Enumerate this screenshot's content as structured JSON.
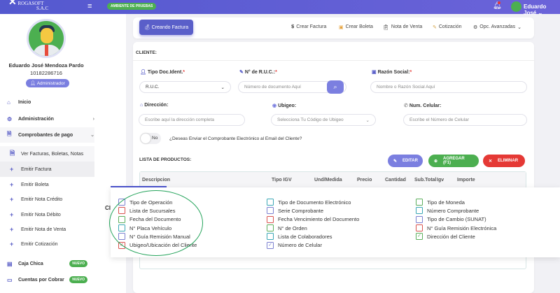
{
  "header": {
    "logo": "ROGASOFT",
    "logo_sub": "S.A.C",
    "env_badge": "AMBIENTE DE PRUEBAS",
    "user": "Eduardo José"
  },
  "profile": {
    "name": "Eduardo José Mendoza Pardo",
    "id": "10182286716",
    "role": "Administrador"
  },
  "sidebar": {
    "items": [
      {
        "label": "Inicio",
        "icon": "home-icon"
      },
      {
        "label": "Administración",
        "icon": "gear-icon"
      },
      {
        "label": "Comprobantes de pago",
        "icon": "document-icon"
      },
      {
        "label": "Ver Facturas, Boletas, Notas",
        "icon": "document-icon"
      },
      {
        "label": "Emitir Factura",
        "icon": "plus-icon"
      },
      {
        "label": "Emitir Boleta",
        "icon": "plus-icon"
      },
      {
        "label": "Emitir Nota Crédito",
        "icon": "plus-icon"
      },
      {
        "label": "Emitir Nota Débito",
        "icon": "plus-icon"
      },
      {
        "label": "Emitir Nota de Venta",
        "icon": "plus-icon"
      },
      {
        "label": "Emitir Cotización",
        "icon": "plus-icon"
      },
      {
        "label": "Caja Chica",
        "icon": "calculator-icon",
        "badge": "NUEVO"
      },
      {
        "label": "Cuentas por Cobrar",
        "icon": "card-icon",
        "badge": "NUEVO"
      }
    ]
  },
  "toolbar": {
    "active": "Creando Factura",
    "links": [
      "Crear Factura",
      "Crear Boleta",
      "Nota de Venta",
      "Cotización",
      "Opc. Avanzadas"
    ]
  },
  "client": {
    "title": "CLIENTE:",
    "tipo_doc_label": "Tipo Doc.Ident.",
    "tipo_doc_value": "R.U.C.",
    "ruc_label": "N° de R.U.C.:",
    "ruc_placeholder": "Número de documento Aquí",
    "razon_label": "Razón Social:",
    "razon_placeholder": "Nombre o Razón Social Aquí",
    "dir_label": "Dirección:",
    "dir_placeholder": "Escribe aquí la dirección completa",
    "ubigeo_label": "Ubigeo:",
    "ubigeo_placeholder": "Selecciona Tu Código de Ubigeo",
    "cel_label": "Num. Celular:",
    "cel_placeholder": "Escribe el Número de Celular",
    "email_toggle": "No",
    "email_question": "¿Deseas Enviar el Comprobante Electrónico al Email del Cliente?",
    "obscured": "Cl"
  },
  "products": {
    "title": "LISTA DE PRODUCTOS:",
    "edit": "EDITAR",
    "add": "AGREGAR (F1)",
    "delete": "ELIMINAR",
    "columns": [
      "Descripcion",
      "Tipo IGV",
      "Und/Medida",
      "Precio",
      "Cantidad",
      "Sub.Total",
      "Igv",
      "Importe"
    ]
  },
  "options": {
    "columns": [
      [
        {
          "label": "Tipo de Operación",
          "color": "#7b80d0",
          "checked": false
        },
        {
          "label": "Lista de Sucursales",
          "color": "#d9534f",
          "checked": false
        },
        {
          "label": "Fecha del Documento",
          "color": "#5cae5c",
          "checked": false
        },
        {
          "label": "N° Placa Vehículo",
          "color": "#3aa7b5",
          "checked": false
        },
        {
          "label": "N° Guía Remisión Manual",
          "color": "#7b80d0",
          "checked": false
        },
        {
          "label": "Ubigeo/Ubicación del Cliente",
          "color": "#d9534f",
          "checked": true
        }
      ],
      [
        {
          "label": "Tipo de Documento Electrónico",
          "color": "#3aa7b5",
          "checked": false
        },
        {
          "label": "Serie Comprobante",
          "color": "#7b80d0",
          "checked": false
        },
        {
          "label": "Fecha Vencimiento del Documento",
          "color": "#d9534f",
          "checked": false
        },
        {
          "label": "N° de Orden",
          "color": "#5cae5c",
          "checked": false
        },
        {
          "label": "Lista de Colaboradores",
          "color": "#3aa7b5",
          "checked": false
        },
        {
          "label": "Número de Celular",
          "color": "#7b80d0",
          "checked": true
        }
      ],
      [
        {
          "label": "Tipo de Moneda",
          "color": "#5cae5c",
          "checked": false
        },
        {
          "label": "Número Comprobante",
          "color": "#3aa7b5",
          "checked": false
        },
        {
          "label": "Tipo de Cambio (SUNAT)",
          "color": "#7b80d0",
          "checked": false
        },
        {
          "label": "N° Guía Remisión Electrónica",
          "color": "#d9534f",
          "checked": false
        },
        {
          "label": "Dirección del Cliente",
          "color": "#5cae5c",
          "checked": true
        }
      ]
    ]
  },
  "colors": {
    "primary": "#5a5fc9",
    "success": "#4caf50",
    "danger": "#e53935",
    "annotation": "#23a35a"
  }
}
